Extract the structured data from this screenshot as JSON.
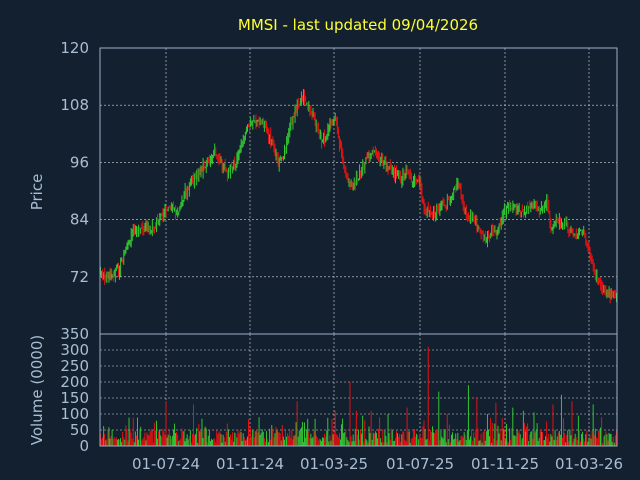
{
  "chart_data": {
    "type": "candlestick",
    "title": "MMSI - last updated 09/04/2026",
    "colors": {
      "background": "#13202f",
      "up": "#33cc33",
      "down": "#ee1111",
      "title": "#ffff33",
      "axis_text": "#a9bed3",
      "grid": "#d8d8d8"
    },
    "x_ticks": [
      "01-07-24",
      "01-11-24",
      "01-03-25",
      "01-07-25",
      "01-11-25",
      "01-03-26"
    ],
    "grid": true,
    "price_panel": {
      "ylabel": "Price",
      "ylim": [
        60,
        120
      ],
      "yticks": [
        "120",
        "108",
        "96",
        "84",
        "72"
      ],
      "close_path": [
        [
          0,
          73
        ],
        [
          6,
          72
        ],
        [
          12,
          72.5
        ],
        [
          18,
          74
        ],
        [
          24,
          78
        ],
        [
          30,
          81
        ],
        [
          40,
          82
        ],
        [
          50,
          82.5
        ],
        [
          58,
          85
        ],
        [
          66,
          86
        ],
        [
          74,
          86
        ],
        [
          80,
          90
        ],
        [
          90,
          93
        ],
        [
          100,
          96
        ],
        [
          108,
          98
        ],
        [
          114,
          96
        ],
        [
          120,
          94
        ],
        [
          128,
          96
        ],
        [
          134,
          100
        ],
        [
          140,
          104
        ],
        [
          150,
          105
        ],
        [
          156,
          104
        ],
        [
          162,
          100
        ],
        [
          168,
          96
        ],
        [
          174,
          98
        ],
        [
          180,
          104
        ],
        [
          186,
          108
        ],
        [
          192,
          110
        ],
        [
          198,
          107
        ],
        [
          204,
          104
        ],
        [
          210,
          100
        ],
        [
          216,
          103
        ],
        [
          222,
          105
        ],
        [
          226,
          100
        ],
        [
          232,
          93
        ],
        [
          238,
          91
        ],
        [
          244,
          93
        ],
        [
          252,
          97
        ],
        [
          260,
          98
        ],
        [
          268,
          96
        ],
        [
          276,
          94
        ],
        [
          284,
          93
        ],
        [
          290,
          94
        ],
        [
          296,
          92
        ],
        [
          302,
          92
        ],
        [
          306,
          86
        ],
        [
          312,
          85
        ],
        [
          320,
          86
        ],
        [
          330,
          88
        ],
        [
          338,
          92
        ],
        [
          346,
          85
        ],
        [
          352,
          84
        ],
        [
          358,
          82
        ],
        [
          364,
          80
        ],
        [
          370,
          81
        ],
        [
          376,
          82
        ],
        [
          382,
          86
        ],
        [
          390,
          87
        ],
        [
          398,
          85
        ],
        [
          404,
          86
        ],
        [
          410,
          87
        ],
        [
          416,
          86
        ],
        [
          422,
          88
        ],
        [
          426,
          82
        ],
        [
          432,
          84
        ],
        [
          440,
          83
        ],
        [
          446,
          81
        ],
        [
          452,
          81
        ],
        [
          456,
          82
        ],
        [
          462,
          77
        ],
        [
          466,
          74
        ],
        [
          472,
          70
        ],
        [
          478,
          68.5
        ],
        [
          484,
          68
        ],
        [
          488,
          68
        ]
      ]
    },
    "volume_panel": {
      "ylabel": "Volume (0000)",
      "ylim": [
        0,
        350
      ],
      "yticks": [
        "350",
        "300",
        "250",
        "200",
        "150",
        "100",
        "50",
        "0"
      ],
      "spikes": [
        [
          38,
          60
        ],
        [
          62,
          140
        ],
        [
          70,
          70
        ],
        [
          88,
          130
        ],
        [
          96,
          85
        ],
        [
          120,
          70
        ],
        [
          150,
          90
        ],
        [
          166,
          60
        ],
        [
          186,
          140
        ],
        [
          196,
          85
        ],
        [
          222,
          110
        ],
        [
          236,
          200
        ],
        [
          242,
          110
        ],
        [
          248,
          95
        ],
        [
          256,
          110
        ],
        [
          264,
          90
        ],
        [
          272,
          100
        ],
        [
          290,
          120
        ],
        [
          310,
          310
        ],
        [
          320,
          170
        ],
        [
          328,
          100
        ],
        [
          348,
          190
        ],
        [
          356,
          150
        ],
        [
          366,
          100
        ],
        [
          374,
          135
        ],
        [
          390,
          120
        ],
        [
          400,
          110
        ],
        [
          410,
          105
        ],
        [
          428,
          130
        ],
        [
          436,
          160
        ],
        [
          446,
          140
        ],
        [
          452,
          95
        ],
        [
          466,
          130
        ],
        [
          474,
          90
        ]
      ]
    }
  }
}
